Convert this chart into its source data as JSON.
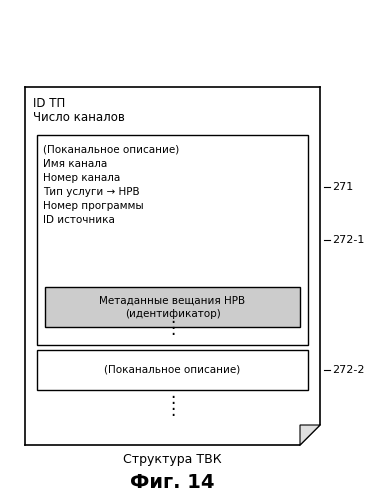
{
  "title_label": "Структура ТВК",
  "fig_label": "Фиг. 14",
  "outer_box_label1": "ID ТП",
  "outer_box_label2": "Число каналов",
  "label_271": "271",
  "label_2721": "272-1",
  "label_2722": "272-2",
  "inner_box1_lines": [
    "(Поканальное описание)",
    "Имя канала",
    "Номер канала",
    "Тип услуги → НРВ",
    "Номер программы",
    "ID источника"
  ],
  "meta_box_lines": [
    "Метаданные вещания НРВ",
    "(идентификатор)"
  ],
  "inner_box2_text": "(Поканальное описание)",
  "bg_color": "#ffffff",
  "outer_box_fill": "#ffffff",
  "outer_box_edge": "#000000",
  "inner_box_edge": "#000000",
  "inner_box_fill": "#ffffff",
  "meta_box_fill": "#cccccc",
  "meta_box_edge": "#000000",
  "text_color": "#000000",
  "dots_color": "#000000"
}
